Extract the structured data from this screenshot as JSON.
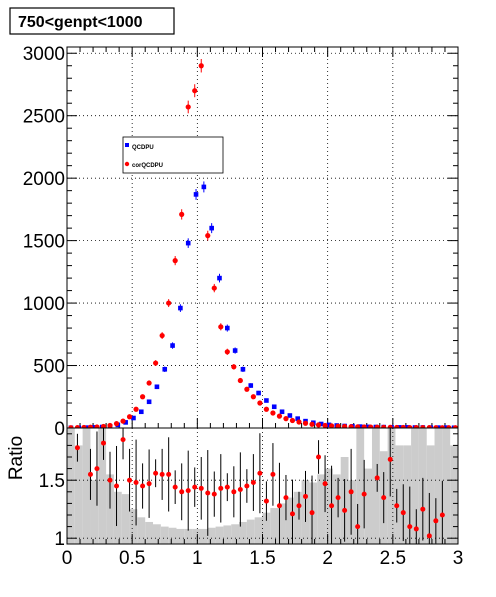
{
  "chart_data": [
    {
      "type": "scatter",
      "title": "750<genpt<1000",
      "xlim": [
        0,
        3
      ],
      "ylim": [
        0,
        3050
      ],
      "grid": true,
      "legend_placement": "upper-left inside plot",
      "yticks": [
        0,
        500,
        1000,
        1500,
        2000,
        2500,
        3000
      ],
      "series": [
        {
          "name": "QCDPU",
          "color": "#0000ff",
          "marker": "square",
          "x": [
            0.03,
            0.09,
            0.15,
            0.21,
            0.27,
            0.33,
            0.39,
            0.45,
            0.51,
            0.57,
            0.63,
            0.69,
            0.75,
            0.81,
            0.87,
            0.93,
            0.99,
            1.05,
            1.11,
            1.17,
            1.23,
            1.29,
            1.35,
            1.41,
            1.47,
            1.53,
            1.59,
            1.65,
            1.71,
            1.77,
            1.83,
            1.89,
            1.95,
            2.01,
            2.07,
            2.13,
            2.19,
            2.25,
            2.31,
            2.37,
            2.43,
            2.49,
            2.55,
            2.61,
            2.67,
            2.73,
            2.79,
            2.85,
            2.91,
            2.97
          ],
          "y": [
            2,
            2,
            3,
            5,
            8,
            14,
            25,
            45,
            80,
            130,
            210,
            330,
            470,
            660,
            960,
            1480,
            1870,
            1930,
            1600,
            1200,
            800,
            620,
            470,
            340,
            280,
            220,
            170,
            130,
            100,
            75,
            55,
            42,
            32,
            25,
            20,
            16,
            13,
            11,
            9,
            8,
            7,
            6,
            5,
            5,
            4,
            4,
            3,
            3,
            3,
            2
          ]
        },
        {
          "name": "corQCDPU",
          "color": "#ff0000",
          "marker": "circle",
          "x": [
            0.03,
            0.08,
            0.13,
            0.18,
            0.23,
            0.28,
            0.33,
            0.38,
            0.43,
            0.48,
            0.53,
            0.58,
            0.63,
            0.68,
            0.73,
            0.78,
            0.83,
            0.88,
            0.93,
            0.98,
            1.03,
            1.08,
            1.13,
            1.18,
            1.23,
            1.28,
            1.33,
            1.38,
            1.43,
            1.48,
            1.53,
            1.58,
            1.63,
            1.68,
            1.73,
            1.78,
            1.83,
            1.88,
            1.93,
            1.98,
            2.03,
            2.08,
            2.13,
            2.18,
            2.23,
            2.28,
            2.33,
            2.38,
            2.43,
            2.48,
            2.53,
            2.58,
            2.63,
            2.68,
            2.73,
            2.78,
            2.83,
            2.88,
            2.93,
            2.98
          ],
          "y": [
            2,
            3,
            4,
            6,
            8,
            12,
            20,
            35,
            55,
            90,
            150,
            250,
            360,
            520,
            740,
            1000,
            1340,
            1710,
            2570,
            2700,
            2900,
            1540,
            1120,
            810,
            610,
            490,
            380,
            310,
            250,
            200,
            150,
            120,
            95,
            75,
            60,
            48,
            38,
            30,
            25,
            20,
            17,
            14,
            12,
            10,
            9,
            8,
            7,
            6,
            5,
            5,
            4,
            4,
            3,
            3,
            3,
            3,
            2,
            2,
            2,
            2
          ]
        }
      ]
    },
    {
      "type": "scatter",
      "ylabel": "Ratio",
      "xlim": [
        0,
        3
      ],
      "ylim": [
        0.95,
        1.95
      ],
      "grid": true,
      "xticks": [
        "0",
        "0.5",
        "1",
        "1.5",
        "2",
        "2.5",
        "3"
      ],
      "yticks": [
        "1",
        "1.5"
      ],
      "ratio_points": {
        "color": "#ff0000",
        "x": [
          0.08,
          0.18,
          0.23,
          0.28,
          0.33,
          0.38,
          0.43,
          0.48,
          0.53,
          0.58,
          0.63,
          0.68,
          0.73,
          0.78,
          0.83,
          0.88,
          0.93,
          0.98,
          1.03,
          1.08,
          1.13,
          1.18,
          1.23,
          1.28,
          1.33,
          1.38,
          1.43,
          1.48,
          1.53,
          1.58,
          1.63,
          1.68,
          1.73,
          1.78,
          1.83,
          1.88,
          1.93,
          1.98,
          2.03,
          2.08,
          2.13,
          2.18,
          2.23,
          2.28,
          2.38,
          2.43,
          2.48,
          2.53,
          2.58,
          2.63,
          2.68,
          2.73,
          2.78,
          2.83,
          2.88
        ],
        "y": [
          1.78,
          1.55,
          1.6,
          1.82,
          1.5,
          1.45,
          1.85,
          1.5,
          1.48,
          1.45,
          1.47,
          1.56,
          1.55,
          1.55,
          1.44,
          1.4,
          1.41,
          1.44,
          1.43,
          1.39,
          1.38,
          1.43,
          1.44,
          1.4,
          1.42,
          1.45,
          1.48,
          1.56,
          1.32,
          1.55,
          1.28,
          1.35,
          1.21,
          1.28,
          1.36,
          1.22,
          1.7,
          1.47,
          1.28,
          1.35,
          1.24,
          1.4,
          1.1,
          1.38,
          1.52,
          1.35,
          1.68,
          1.28,
          1.22,
          1.1,
          1.08,
          1.25,
          1.02,
          1.15,
          1.2
        ]
      },
      "band": {
        "color": "#cccccc",
        "x": [
          0.03,
          0.09,
          0.15,
          0.21,
          0.27,
          0.33,
          0.39,
          0.45,
          0.51,
          0.57,
          0.63,
          0.69,
          0.75,
          0.81,
          0.87,
          0.93,
          0.99,
          1.05,
          1.11,
          1.17,
          1.23,
          1.29,
          1.35,
          1.41,
          1.47,
          1.53,
          1.59,
          1.65,
          1.71,
          1.77,
          1.83,
          1.89,
          1.95,
          2.01,
          2.07,
          2.13,
          2.19,
          2.25,
          2.31,
          2.37,
          2.43,
          2.49,
          2.55,
          2.61,
          2.67,
          2.73,
          2.79,
          2.85,
          2.91,
          2.97
        ],
        "y": [
          1.95,
          1.8,
          1.95,
          1.5,
          1.95,
          1.55,
          1.4,
          1.38,
          1.25,
          1.18,
          1.14,
          1.12,
          1.1,
          1.09,
          1.08,
          1.08,
          1.08,
          1.08,
          1.09,
          1.1,
          1.11,
          1.12,
          1.14,
          1.16,
          1.18,
          1.22,
          1.26,
          1.3,
          1.35,
          1.4,
          1.5,
          1.48,
          1.55,
          1.6,
          1.55,
          1.7,
          1.5,
          1.95,
          1.6,
          1.95,
          1.75,
          1.95,
          1.8,
          1.8,
          1.95,
          1.95,
          1.8,
          1.95,
          1.95,
          1.8
        ]
      }
    }
  ]
}
